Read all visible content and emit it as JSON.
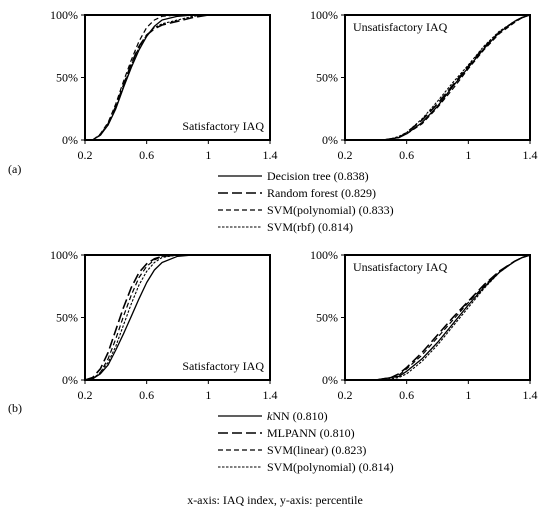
{
  "caption": "x-axis: IAQ index, y-axis: percentile",
  "panels": [
    {
      "tag": "(a)",
      "legend": [
        {
          "name": "Decision tree (0.838)",
          "dash": "solid"
        },
        {
          "name": "Random forest (0.829)",
          "dash": "longdash"
        },
        {
          "name": "SVM(polynomial) (0.833)",
          "dash": "dash"
        },
        {
          "name": "SVM(rbf) (0.814)",
          "dash": "dot"
        }
      ]
    },
    {
      "tag": "(b)",
      "legend": [
        {
          "prefix": "k",
          "name": "NN (0.810)",
          "dash": "solid"
        },
        {
          "name": "MLPANN (0.810)",
          "dash": "longdash"
        },
        {
          "name": "SVM(linear) (0.823)",
          "dash": "dash"
        },
        {
          "name": "SVM(polynomial) (0.814)",
          "dash": "dot"
        }
      ]
    }
  ],
  "chart_data": [
    {
      "type": "line",
      "panel": "a",
      "title": "Satisfactory IAQ",
      "xlim": [
        0.2,
        1.4
      ],
      "ylim": [
        0,
        100
      ],
      "xticks": [
        "0.2",
        "0.6",
        "1",
        "1.4"
      ],
      "yticks": [
        "0%",
        "50%",
        "100%"
      ],
      "series": [
        {
          "name": "Decision tree (0.838)",
          "x": [
            0.2,
            0.25,
            0.3,
            0.35,
            0.4,
            0.45,
            0.5,
            0.55,
            0.6,
            0.65,
            0.7,
            0.8,
            0.9,
            1.0
          ],
          "y": [
            0,
            0,
            4,
            12,
            25,
            42,
            58,
            72,
            83,
            91,
            96,
            99,
            100,
            100
          ]
        },
        {
          "name": "Random forest (0.829)",
          "x": [
            0.2,
            0.25,
            0.3,
            0.35,
            0.4,
            0.45,
            0.5,
            0.55,
            0.6,
            0.65,
            0.7,
            0.8,
            0.9,
            1.0
          ],
          "y": [
            0,
            0,
            4,
            13,
            27,
            44,
            61,
            75,
            84,
            89,
            92,
            95,
            98,
            100
          ]
        },
        {
          "name": "SVM(polynomial) (0.833)",
          "x": [
            0.2,
            0.25,
            0.3,
            0.35,
            0.4,
            0.45,
            0.5,
            0.55,
            0.6,
            0.65,
            0.7,
            0.8,
            0.9,
            1.0
          ],
          "y": [
            0,
            0,
            5,
            14,
            29,
            47,
            64,
            79,
            90,
            96,
            99,
            100,
            100,
            100
          ]
        },
        {
          "name": "SVM(rbf) (0.814)",
          "x": [
            0.2,
            0.25,
            0.3,
            0.35,
            0.4,
            0.45,
            0.5,
            0.55,
            0.6,
            0.65,
            0.7,
            0.8,
            0.9,
            1.0
          ],
          "y": [
            0,
            0,
            4,
            12,
            26,
            43,
            60,
            74,
            84,
            90,
            93,
            96,
            99,
            100
          ]
        }
      ]
    },
    {
      "type": "line",
      "panel": "a",
      "title": "Unsatisfactory IAQ",
      "xlim": [
        0.2,
        1.4
      ],
      "ylim": [
        0,
        100
      ],
      "xticks": [
        "0.2",
        "0.6",
        "1",
        "1.4"
      ],
      "yticks": [
        "0%",
        "50%",
        "100%"
      ],
      "series": [
        {
          "name": "Decision tree (0.838)",
          "x": [
            0.45,
            0.5,
            0.55,
            0.6,
            0.7,
            0.8,
            0.9,
            1.0,
            1.1,
            1.2,
            1.3,
            1.35,
            1.4
          ],
          "y": [
            0,
            1,
            2,
            5,
            14,
            27,
            43,
            58,
            73,
            86,
            95,
            98,
            100
          ]
        },
        {
          "name": "Random forest (0.829)",
          "x": [
            0.45,
            0.5,
            0.55,
            0.6,
            0.7,
            0.8,
            0.9,
            1.0,
            1.1,
            1.2,
            1.3,
            1.35,
            1.4
          ],
          "y": [
            0,
            1,
            2,
            6,
            16,
            29,
            44,
            59,
            74,
            86,
            95,
            98,
            100
          ]
        },
        {
          "name": "SVM(polynomial) (0.833)",
          "x": [
            0.45,
            0.5,
            0.55,
            0.6,
            0.7,
            0.8,
            0.9,
            1.0,
            1.1,
            1.2,
            1.3,
            1.35,
            1.4
          ],
          "y": [
            0,
            1,
            2,
            5,
            13,
            26,
            41,
            57,
            72,
            85,
            94,
            98,
            100
          ]
        },
        {
          "name": "SVM(rbf) (0.814)",
          "x": [
            0.45,
            0.5,
            0.55,
            0.6,
            0.7,
            0.8,
            0.9,
            1.0,
            1.1,
            1.2,
            1.3,
            1.35,
            1.4
          ],
          "y": [
            0,
            1,
            3,
            6,
            17,
            31,
            46,
            60,
            75,
            87,
            95,
            98,
            100
          ]
        }
      ]
    },
    {
      "type": "line",
      "panel": "b",
      "title": "Satisfactory IAQ",
      "xlim": [
        0.2,
        1.4
      ],
      "ylim": [
        0,
        100
      ],
      "xticks": [
        "0.2",
        "0.6",
        "1",
        "1.4"
      ],
      "yticks": [
        "0%",
        "50%",
        "100%"
      ],
      "series": [
        {
          "name": "kNN (0.810)",
          "x": [
            0.2,
            0.25,
            0.3,
            0.35,
            0.4,
            0.45,
            0.5,
            0.55,
            0.6,
            0.65,
            0.7,
            0.8,
            0.9
          ],
          "y": [
            0,
            1,
            5,
            12,
            24,
            37,
            51,
            65,
            78,
            88,
            94,
            99,
            100
          ]
        },
        {
          "name": "MLPANN (0.810)",
          "x": [
            0.2,
            0.25,
            0.3,
            0.35,
            0.4,
            0.45,
            0.5,
            0.55,
            0.6,
            0.65,
            0.7,
            0.8,
            0.9
          ],
          "y": [
            0,
            2,
            9,
            22,
            40,
            58,
            74,
            86,
            93,
            97,
            99,
            100,
            100
          ]
        },
        {
          "name": "SVM(linear) (0.823)",
          "x": [
            0.2,
            0.25,
            0.3,
            0.35,
            0.4,
            0.45,
            0.5,
            0.55,
            0.6,
            0.65,
            0.7,
            0.8,
            0.9
          ],
          "y": [
            0,
            1,
            6,
            17,
            33,
            51,
            68,
            82,
            91,
            96,
            99,
            100,
            100
          ]
        },
        {
          "name": "SVM(polynomial) (0.814)",
          "x": [
            0.2,
            0.25,
            0.3,
            0.35,
            0.4,
            0.45,
            0.5,
            0.55,
            0.6,
            0.65,
            0.7,
            0.8,
            0.9
          ],
          "y": [
            0,
            1,
            6,
            14,
            27,
            44,
            61,
            76,
            87,
            94,
            98,
            100,
            100
          ]
        }
      ]
    },
    {
      "type": "line",
      "panel": "b",
      "title": "Unsatisfactory IAQ",
      "xlim": [
        0.2,
        1.4
      ],
      "ylim": [
        0,
        100
      ],
      "xticks": [
        "0.2",
        "0.6",
        "1",
        "1.4"
      ],
      "yticks": [
        "0%",
        "50%",
        "100%"
      ],
      "series": [
        {
          "name": "kNN (0.810)",
          "x": [
            0.4,
            0.45,
            0.5,
            0.55,
            0.6,
            0.7,
            0.8,
            0.9,
            1.0,
            1.1,
            1.2,
            1.3,
            1.35,
            1.4
          ],
          "y": [
            0,
            1,
            2,
            3,
            7,
            17,
            30,
            45,
            60,
            74,
            86,
            95,
            98,
            100
          ]
        },
        {
          "name": "MLPANN (0.810)",
          "x": [
            0.4,
            0.45,
            0.5,
            0.55,
            0.6,
            0.7,
            0.8,
            0.9,
            1.0,
            1.1,
            1.2,
            1.3,
            1.35,
            1.4
          ],
          "y": [
            0,
            1,
            2,
            5,
            10,
            22,
            36,
            50,
            63,
            76,
            87,
            95,
            98,
            100
          ]
        },
        {
          "name": "SVM(linear) (0.823)",
          "x": [
            0.4,
            0.45,
            0.5,
            0.55,
            0.6,
            0.7,
            0.8,
            0.9,
            1.0,
            1.1,
            1.2,
            1.3,
            1.35,
            1.4
          ],
          "y": [
            0,
            1,
            2,
            4,
            9,
            20,
            34,
            48,
            62,
            75,
            87,
            95,
            98,
            100
          ]
        },
        {
          "name": "SVM(polynomial) (0.814)",
          "x": [
            0.4,
            0.45,
            0.5,
            0.55,
            0.6,
            0.7,
            0.8,
            0.9,
            1.0,
            1.1,
            1.2,
            1.3,
            1.35,
            1.4
          ],
          "y": [
            0,
            0,
            1,
            2,
            5,
            15,
            28,
            43,
            58,
            73,
            86,
            95,
            98,
            100
          ]
        }
      ]
    }
  ]
}
